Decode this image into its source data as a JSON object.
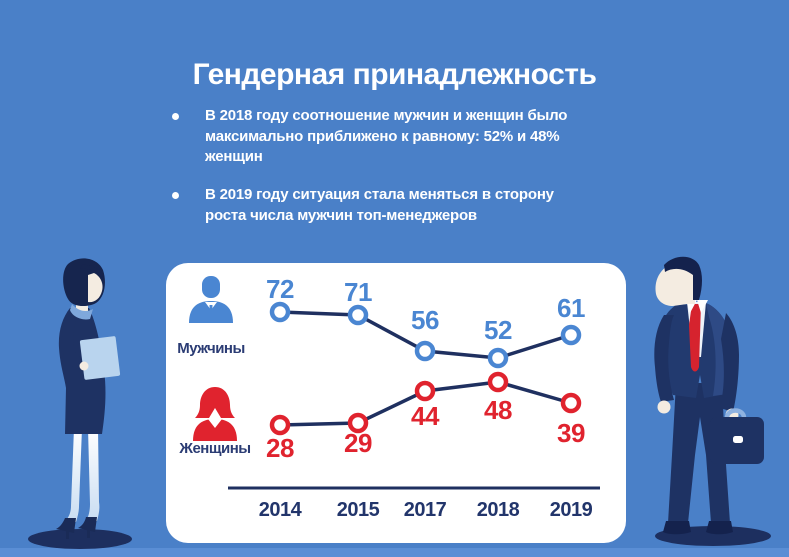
{
  "page": {
    "title": "Гендерная принадлежность",
    "bullets": [
      {
        "text": "В 2018 году соотношение мужчин и женщин было\nмаксимально приближено к равному: 52% и 48% женщин"
      },
      {
        "text": "В 2019 году ситуация стала меняться в сторону\nроста числа мужчин топ-менеджеров"
      }
    ]
  },
  "colors": {
    "background": "#4a80c8",
    "bottom_band": "#5a8ed5",
    "card": "#ffffff",
    "navy": "#1f3060",
    "men_accent": "#4a86d2",
    "women_accent": "#e0232e",
    "text": "#ffffff"
  },
  "chart_data": {
    "type": "line",
    "categories": [
      "2014",
      "2015",
      "2017",
      "2018",
      "2019"
    ],
    "series": [
      {
        "name": "Мужчины",
        "color": "#4a86d2",
        "values": [
          72,
          71,
          56,
          52,
          61
        ]
      },
      {
        "name": "Женщины",
        "color": "#e0232e",
        "values": [
          28,
          29,
          44,
          48,
          39
        ]
      }
    ],
    "unit": "%",
    "ylim": [
      0,
      100
    ],
    "grid": false,
    "value_labels": true,
    "legend_position": "left"
  }
}
